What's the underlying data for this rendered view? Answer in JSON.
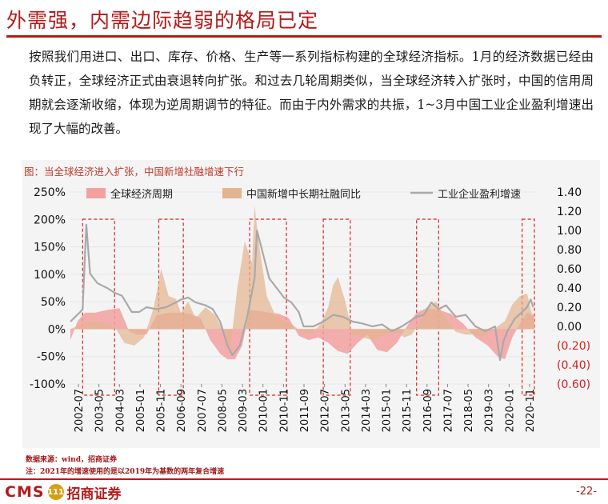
{
  "page": {
    "title": "外需强，内需边际趋弱的格局已定",
    "body": "按照我们用进口、出口、库存、价格、生产等一系列指标构建的全球经济指标。1月的经济数据已经由负转正，全球经济正式由衰退转向扩张。和过去几轮周期类似，当全球经济转入扩张时，中国的信用周期就会逐渐收缩，体现为逆周期调节的特征。而由于内外需求的共振，1~3月中国工业企业盈利增速出现了大幅的改善。",
    "source": "数据来源：wind，招商证券",
    "note": "注：2021年的增速使用的是以2019年为基数的两年复合增速",
    "logo_en": "CMS",
    "logo_badge": "111",
    "logo_cn": "招商证券",
    "page_number": "-22-"
  },
  "chart_data": {
    "type": "area",
    "title": "图：当全球经济进入扩张，中国新增社融增速下行",
    "x_tick_labels": [
      "2002-07",
      "2003-05",
      "2004-03",
      "2005-01",
      "2005-11",
      "2006-09",
      "2007-07",
      "2008-05",
      "2009-03",
      "2010-01",
      "2010-11",
      "2011-09",
      "2012-07",
      "2013-05",
      "2014-03",
      "2015-01",
      "2015-11",
      "2016-09",
      "2017-07",
      "2018-05",
      "2019-03",
      "2020-01",
      "2020-11"
    ],
    "y_left_ticks": [
      "250%",
      "200%",
      "150%",
      "100%",
      "50%",
      "0%",
      "-50%",
      "-100%"
    ],
    "y_left_range": [
      -100,
      250
    ],
    "y_right_ticks": [
      "1.40",
      "1.20",
      "1.00",
      "0.80",
      "0.60",
      "0.40",
      "0.20",
      "0.00",
      "(0.20)",
      "(0.40)",
      "(0.60)"
    ],
    "y_right_range": [
      -0.6,
      1.4
    ],
    "x_range": [
      2002.5,
      2021.4
    ],
    "colors": {
      "global_cycle": "#f2a0a0",
      "credit": "#e3b48e",
      "profit_line": "#a9a9a9",
      "box": "#e02020",
      "grid": "#e6e6e6"
    },
    "expansion_periods": [
      [
        2003.0,
        2004.3
      ],
      [
        2006.1,
        2007.1
      ],
      [
        2009.8,
        2011.3
      ],
      [
        2012.8,
        2013.9
      ],
      [
        2016.6,
        2017.5
      ],
      [
        2020.9,
        2021.4
      ]
    ],
    "series": [
      {
        "name": "全球经济周期",
        "axis": "left",
        "style": "area",
        "x": [
          2002.5,
          2002.8,
          2003.1,
          2003.5,
          2004.0,
          2004.5,
          2004.9,
          2005.2,
          2005.6,
          2006.0,
          2006.5,
          2007.0,
          2007.4,
          2007.8,
          2008.2,
          2008.6,
          2008.9,
          2009.2,
          2009.5,
          2009.8,
          2010.2,
          2010.6,
          2011.0,
          2011.4,
          2011.8,
          2012.2,
          2012.6,
          2013.0,
          2013.4,
          2013.8,
          2014.2,
          2014.6,
          2015.0,
          2015.4,
          2015.8,
          2016.2,
          2016.6,
          2017.0,
          2017.5,
          2018.0,
          2018.5,
          2019.0,
          2019.5,
          2019.9,
          2020.2,
          2020.5,
          2020.8,
          2021.1,
          2021.4
        ],
        "y": [
          -20,
          15,
          30,
          30,
          35,
          38,
          -5,
          -10,
          -10,
          25,
          30,
          30,
          28,
          20,
          -20,
          -45,
          -55,
          -55,
          -30,
          35,
          33,
          30,
          28,
          20,
          -12,
          -20,
          -15,
          -25,
          -40,
          -45,
          -25,
          -10,
          -38,
          -42,
          -25,
          5,
          30,
          38,
          35,
          28,
          10,
          -15,
          -30,
          -50,
          -55,
          -15,
          10,
          30,
          25
        ]
      },
      {
        "name": "中国新增中长期社融同比",
        "axis": "left",
        "style": "area",
        "x": [
          2002.5,
          2003.0,
          2003.4,
          2003.9,
          2004.3,
          2004.7,
          2005.1,
          2005.5,
          2005.9,
          2006.2,
          2006.5,
          2006.8,
          2007.0,
          2007.3,
          2007.6,
          2008.0,
          2008.4,
          2008.8,
          2009.0,
          2009.3,
          2009.6,
          2009.9,
          2010.0,
          2010.2,
          2010.5,
          2010.8,
          2011.1,
          2011.5,
          2011.9,
          2012.3,
          2012.7,
          2013.0,
          2013.2,
          2013.4,
          2013.7,
          2014.0,
          2014.4,
          2014.8,
          2015.3,
          2015.8,
          2016.1,
          2016.4,
          2016.7,
          2017.0,
          2017.4,
          2017.8,
          2018.2,
          2018.6,
          2019.0,
          2019.3,
          2019.6,
          2019.9,
          2020.2,
          2020.5,
          2020.8,
          2021.1,
          2021.4
        ],
        "y": [
          0,
          10,
          15,
          10,
          5,
          -25,
          -30,
          -15,
          40,
          110,
          60,
          55,
          30,
          50,
          20,
          40,
          25,
          -10,
          -40,
          75,
          160,
          120,
          225,
          150,
          60,
          30,
          15,
          10,
          -5,
          -10,
          10,
          40,
          80,
          95,
          50,
          -10,
          -15,
          -20,
          -10,
          -5,
          -15,
          -10,
          10,
          40,
          50,
          20,
          -5,
          -10,
          -10,
          -15,
          -5,
          5,
          15,
          45,
          60,
          65,
          10
        ]
      },
      {
        "name": "工业企业盈利增速",
        "axis": "right",
        "style": "line",
        "x": [
          2002.5,
          2002.7,
          2002.9,
          2003.0,
          2003.15,
          2003.3,
          2003.6,
          2004.0,
          2004.3,
          2004.6,
          2005.0,
          2005.3,
          2005.6,
          2006.0,
          2006.4,
          2006.8,
          2007.0,
          2007.3,
          2007.6,
          2008.0,
          2008.3,
          2008.6,
          2008.9,
          2009.1,
          2009.4,
          2009.7,
          2010.0,
          2010.1,
          2010.3,
          2010.6,
          2010.9,
          2011.2,
          2011.5,
          2011.8,
          2012.0,
          2012.4,
          2012.8,
          2013.2,
          2013.6,
          2014.0,
          2014.4,
          2014.8,
          2015.2,
          2015.6,
          2016.0,
          2016.3,
          2016.6,
          2016.9,
          2017.2,
          2017.5,
          2017.8,
          2018.2,
          2018.6,
          2019.0,
          2019.4,
          2019.8,
          2020.0,
          2020.15,
          2020.3,
          2020.6,
          2020.9,
          2021.1,
          2021.25,
          2021.35
        ],
        "y": [
          0.05,
          0.1,
          0.15,
          0.18,
          1.06,
          0.55,
          0.45,
          0.4,
          0.35,
          0.32,
          0.15,
          0.15,
          0.2,
          0.18,
          0.2,
          0.25,
          0.28,
          0.3,
          0.25,
          0.22,
          0.18,
          0.05,
          -0.2,
          -0.3,
          -0.2,
          0.1,
          0.5,
          1.0,
          0.8,
          0.5,
          0.4,
          0.3,
          0.25,
          0.15,
          0.0,
          0.0,
          0.05,
          0.12,
          0.1,
          0.05,
          0.03,
          0.0,
          0.02,
          -0.05,
          0.0,
          0.05,
          0.1,
          0.12,
          0.25,
          0.18,
          0.22,
          0.1,
          0.12,
          0.0,
          -0.05,
          0.0,
          -0.35,
          -0.15,
          -0.05,
          0.08,
          0.15,
          0.2,
          0.28,
          0.2
        ]
      }
    ]
  }
}
